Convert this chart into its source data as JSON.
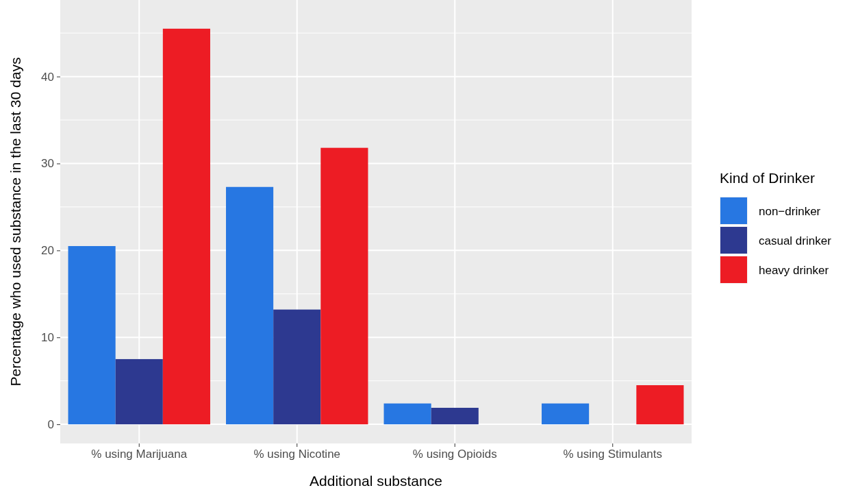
{
  "chart_data": {
    "type": "bar",
    "xlabel": "Additional substance",
    "ylabel": "Percentage who used substance in the last 30 days",
    "legend_title": "Kind of Drinker",
    "categories": [
      "% using Marijuana",
      "% using Nicotine",
      "% using Opioids",
      "% using Stimulants"
    ],
    "series": [
      {
        "name": "non−drinker",
        "color": "#2777e2",
        "values": [
          20.5,
          27.3,
          2.4,
          2.4
        ]
      },
      {
        "name": "casual drinker",
        "color": "#2d3990",
        "values": [
          7.5,
          13.2,
          1.9,
          0
        ]
      },
      {
        "name": "heavy drinker",
        "color": "#ed1c24",
        "values": [
          45.5,
          31.8,
          0,
          4.5
        ]
      }
    ],
    "ylim": [
      -2.2,
      48.8
    ],
    "yticks": [
      0,
      10,
      20,
      30,
      40
    ],
    "grid": true,
    "legend": "right"
  }
}
